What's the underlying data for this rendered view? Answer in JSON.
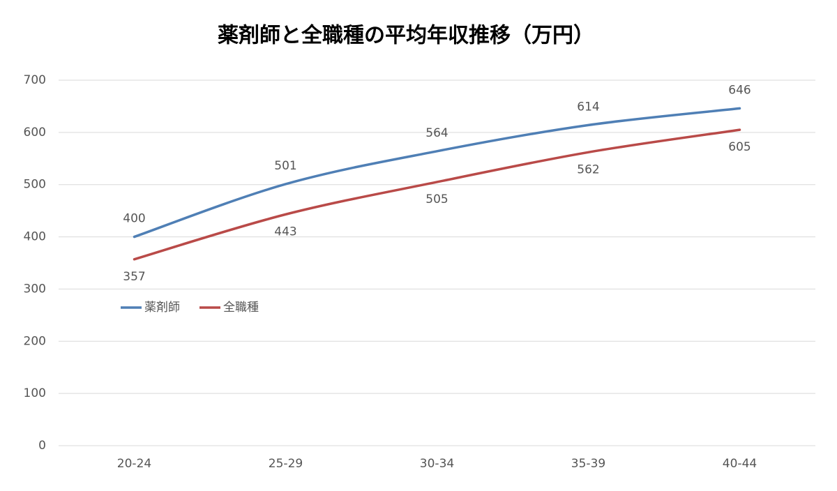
{
  "chart_data": {
    "type": "line",
    "title": "薬剤師と全職種の平均年収推移（万円）",
    "categories": [
      "20-24",
      "25-29",
      "30-34",
      "35-39",
      "40-44"
    ],
    "series": [
      {
        "name": "薬剤師",
        "color": "#4f7fb5",
        "values": [
          400,
          501,
          564,
          614,
          646
        ]
      },
      {
        "name": "全職種",
        "color": "#b94a48",
        "values": [
          357,
          443,
          505,
          562,
          605
        ]
      }
    ],
    "ylim": [
      0,
      700
    ],
    "yticks": [
      0,
      100,
      200,
      300,
      400,
      500,
      600,
      700
    ],
    "grid": true,
    "smooth": true,
    "legend": "middle-left"
  }
}
